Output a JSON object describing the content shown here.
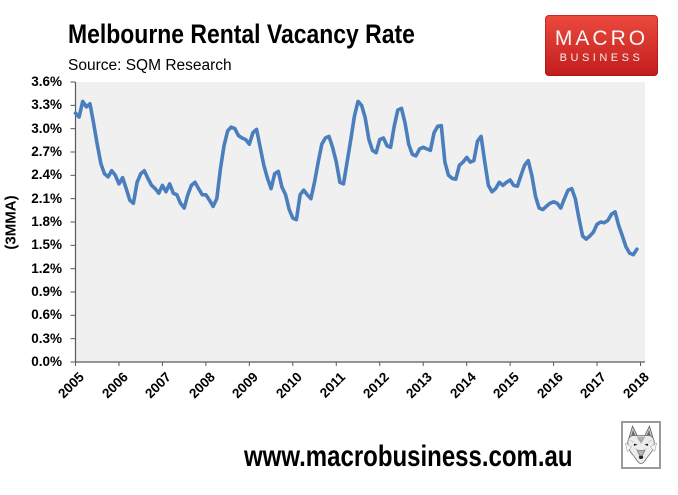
{
  "header": {
    "title": "Melbourne Rental Vacancy Rate",
    "source": "Source: SQM Research"
  },
  "logo": {
    "line1": "MACRO",
    "line2": "BUSINESS",
    "bg_top": "#ec4a3e",
    "bg_bottom": "#c11d1d"
  },
  "footer": {
    "url": "www.macrobusiness.com.au"
  },
  "chart_data": {
    "type": "line",
    "title": "Melbourne Rental Vacancy Rate",
    "subtitle": "Source: SQM Research",
    "xlabel": "",
    "ylabel": "(3MMA)",
    "ylim": [
      0.0,
      3.6
    ],
    "grid": false,
    "legend": false,
    "plot_bg": "#f0f0f0",
    "axis_color": "#595959",
    "line_color": "#4a7ebc",
    "x_tick_years": [
      "2005",
      "2006",
      "2007",
      "2008",
      "2009",
      "2010",
      "2011",
      "2012",
      "2013",
      "2014",
      "2015",
      "2016",
      "2017",
      "2018"
    ],
    "y_tick_values": [
      0.0,
      0.3,
      0.6,
      0.9,
      1.2,
      1.5,
      1.8,
      2.1,
      2.4,
      2.7,
      3.0,
      3.3,
      3.6
    ],
    "y_tick_labels": [
      "0.0%",
      "0.3%",
      "0.6%",
      "0.9%",
      "1.2%",
      "1.5%",
      "1.8%",
      "2.1%",
      "2.4%",
      "2.7%",
      "3.0%",
      "3.3%",
      "3.6%"
    ],
    "x_start": "2005-01",
    "x_end": "2017-12",
    "series": [
      {
        "name": "Melbourne rental vacancy rate (3MMA, %)",
        "frequency": "monthly",
        "values": [
          3.2,
          3.15,
          3.35,
          3.28,
          3.32,
          3.07,
          2.8,
          2.55,
          2.42,
          2.38,
          2.46,
          2.4,
          2.29,
          2.37,
          2.23,
          2.08,
          2.04,
          2.31,
          2.42,
          2.46,
          2.36,
          2.27,
          2.23,
          2.17,
          2.27,
          2.19,
          2.29,
          2.17,
          2.15,
          2.04,
          1.98,
          2.15,
          2.27,
          2.31,
          2.23,
          2.15,
          2.15,
          2.08,
          2.0,
          2.1,
          2.48,
          2.78,
          2.97,
          3.02,
          3.0,
          2.91,
          2.88,
          2.86,
          2.8,
          2.95,
          2.99,
          2.76,
          2.53,
          2.36,
          2.23,
          2.42,
          2.45,
          2.25,
          2.15,
          1.96,
          1.85,
          1.83,
          2.15,
          2.21,
          2.15,
          2.1,
          2.31,
          2.57,
          2.8,
          2.88,
          2.9,
          2.76,
          2.57,
          2.31,
          2.29,
          2.57,
          2.86,
          3.16,
          3.35,
          3.3,
          3.14,
          2.86,
          2.72,
          2.69,
          2.86,
          2.88,
          2.78,
          2.76,
          3.03,
          3.24,
          3.26,
          3.07,
          2.8,
          2.67,
          2.65,
          2.74,
          2.76,
          2.74,
          2.72,
          2.95,
          3.03,
          3.04,
          2.57,
          2.4,
          2.36,
          2.35,
          2.53,
          2.57,
          2.63,
          2.57,
          2.59,
          2.84,
          2.9,
          2.57,
          2.27,
          2.19,
          2.23,
          2.31,
          2.27,
          2.31,
          2.34,
          2.27,
          2.26,
          2.4,
          2.53,
          2.59,
          2.4,
          2.13,
          1.98,
          1.96,
          2.0,
          2.04,
          2.06,
          2.04,
          1.98,
          2.1,
          2.21,
          2.23,
          2.1,
          1.85,
          1.62,
          1.58,
          1.62,
          1.67,
          1.77,
          1.8,
          1.79,
          1.82,
          1.9,
          1.93,
          1.75,
          1.62,
          1.48,
          1.4,
          1.38,
          1.45
        ]
      }
    ]
  }
}
